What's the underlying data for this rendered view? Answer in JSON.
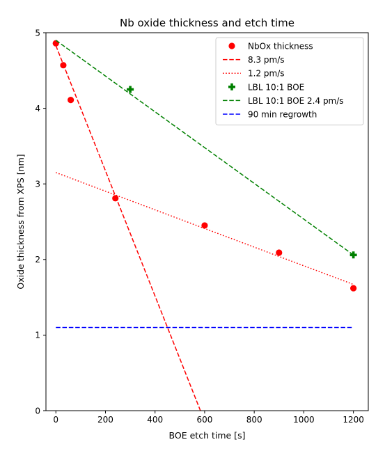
{
  "chart_data": {
    "type": "scatter",
    "title": "Nb oxide thickness and etch time",
    "xlabel": "BOE etch time [s]",
    "ylabel": "Oxide thickness from XPS [nm]",
    "xlim": [
      -40,
      1260
    ],
    "ylim": [
      0,
      5
    ],
    "xticks": [
      0,
      200,
      400,
      600,
      800,
      1000,
      1200
    ],
    "yticks": [
      0,
      1,
      2,
      3,
      4,
      5
    ],
    "grid": false,
    "legend_position": "top-right",
    "series": [
      {
        "name": "NbOx thickness",
        "kind": "points",
        "marker": "circle",
        "color": "#ff0000",
        "points": [
          [
            0,
            4.86
          ],
          [
            30,
            4.57
          ],
          [
            60,
            4.11
          ],
          [
            240,
            2.81
          ],
          [
            600,
            2.45
          ],
          [
            900,
            2.09
          ],
          [
            1200,
            1.62
          ]
        ]
      },
      {
        "name": "8.3 pm/s",
        "kind": "line",
        "dash": "dashed",
        "color": "#ff0000",
        "points": [
          [
            0,
            4.83
          ],
          [
            583,
            0
          ]
        ]
      },
      {
        "name": "1.2 pm/s",
        "kind": "line",
        "dash": "dotted",
        "color": "#ff0000",
        "points": [
          [
            0,
            3.15
          ],
          [
            1200,
            1.67
          ]
        ]
      },
      {
        "name": "LBL 10:1 BOE",
        "kind": "points",
        "marker": "plus",
        "color": "#008000",
        "points": [
          [
            300,
            4.25
          ],
          [
            1200,
            2.06
          ]
        ]
      },
      {
        "name": "LBL 10:1 BOE 2.4 pm/s",
        "kind": "line",
        "dash": "dashed",
        "color": "#008000",
        "points": [
          [
            0,
            4.9
          ],
          [
            1200,
            2.06
          ]
        ]
      },
      {
        "name": "90 min regrowth",
        "kind": "line",
        "dash": "dashed",
        "color": "#0000ff",
        "points": [
          [
            0,
            1.1
          ],
          [
            1200,
            1.1
          ]
        ]
      }
    ]
  }
}
